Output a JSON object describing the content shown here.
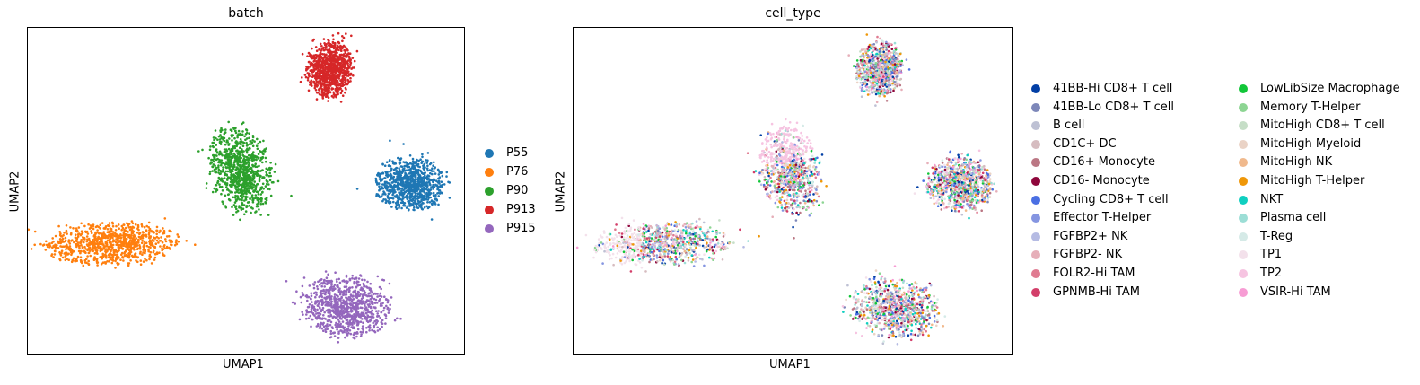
{
  "chart_data": [
    {
      "type": "scatter",
      "title": "batch",
      "xlabel": "UMAP1",
      "ylabel": "UMAP2",
      "legend_placement": "right",
      "series": [
        {
          "name": "P55",
          "color": "#1f77b4"
        },
        {
          "name": "P76",
          "color": "#ff7f0e"
        },
        {
          "name": "P90",
          "color": "#2ca02c"
        },
        {
          "name": "P913",
          "color": "#d62728"
        },
        {
          "name": "P915",
          "color": "#9467bd"
        }
      ]
    },
    {
      "type": "scatter",
      "title": "cell_type",
      "xlabel": "UMAP1",
      "ylabel": "UMAP2",
      "legend_placement": "right",
      "series": [
        {
          "name": "41BB-Hi CD8+ T cell",
          "color": "#023fa5"
        },
        {
          "name": "41BB-Lo CD8+ T cell",
          "color": "#7d87b9"
        },
        {
          "name": "B cell",
          "color": "#bec1d4"
        },
        {
          "name": "CD1C+ DC",
          "color": "#d6bcc0"
        },
        {
          "name": "CD16+ Monocyte",
          "color": "#bb7784"
        },
        {
          "name": "CD16- Monocyte",
          "color": "#8e063b"
        },
        {
          "name": "Cycling CD8+ T cell",
          "color": "#4a6fe3"
        },
        {
          "name": "Effector T-Helper",
          "color": "#8595e1"
        },
        {
          "name": "FGFBP2+ NK",
          "color": "#b5bbe3"
        },
        {
          "name": "FGFBP2- NK",
          "color": "#e6afb9"
        },
        {
          "name": "FOLR2-Hi TAM",
          "color": "#e07b91"
        },
        {
          "name": "GPNMB-Hi TAM",
          "color": "#d33f6a"
        },
        {
          "name": "LowLibSize Macrophage",
          "color": "#11c638"
        },
        {
          "name": "Memory T-Helper",
          "color": "#8dd593"
        },
        {
          "name": "MitoHigh CD8+ T cell",
          "color": "#c6dec7"
        },
        {
          "name": "MitoHigh Myeloid",
          "color": "#ead3c6"
        },
        {
          "name": "MitoHigh NK",
          "color": "#f0b98d"
        },
        {
          "name": "MitoHigh T-Helper",
          "color": "#ef9708"
        },
        {
          "name": "NKT",
          "color": "#0fcfc0"
        },
        {
          "name": "Plasma cell",
          "color": "#9cded6"
        },
        {
          "name": "T-Reg",
          "color": "#d5eae7"
        },
        {
          "name": "TP1",
          "color": "#f3e1eb"
        },
        {
          "name": "TP2",
          "color": "#f6c4e1"
        },
        {
          "name": "VSIR-Hi TAM",
          "color": "#f79cd4"
        }
      ]
    }
  ]
}
